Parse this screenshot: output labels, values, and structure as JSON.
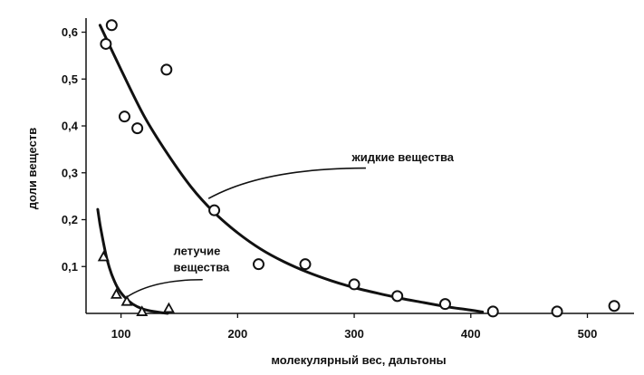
{
  "chart_data": {
    "type": "scatter",
    "xlabel": "молекулярный вес, дальтоны",
    "ylabel": "доли веществ",
    "xlim": [
      70,
      540
    ],
    "ylim": [
      0,
      0.63
    ],
    "x_ticks": [
      100,
      200,
      300,
      400,
      500
    ],
    "x_tick_labels": [
      "100",
      "200",
      "300",
      "400",
      "500"
    ],
    "y_ticks": [
      0.1,
      0.2,
      0.3,
      0.4,
      0.5,
      0.6
    ],
    "y_tick_labels": [
      "0,1",
      "0,2",
      "0,3",
      "0,4",
      "0,5",
      "0,6"
    ],
    "grid": false,
    "colors": {
      "ink": "#111111",
      "background": "#ffffff"
    },
    "series": [
      {
        "name": "жидкие вещества",
        "marker": "circle",
        "points": [
          {
            "x": 87,
            "y": 0.575
          },
          {
            "x": 92,
            "y": 0.615
          },
          {
            "x": 103,
            "y": 0.42
          },
          {
            "x": 114,
            "y": 0.395
          },
          {
            "x": 139,
            "y": 0.52
          },
          {
            "x": 180,
            "y": 0.22
          },
          {
            "x": 218,
            "y": 0.105
          },
          {
            "x": 258,
            "y": 0.105
          },
          {
            "x": 300,
            "y": 0.062
          },
          {
            "x": 337,
            "y": 0.037
          },
          {
            "x": 378,
            "y": 0.02
          },
          {
            "x": 419,
            "y": 0.004
          },
          {
            "x": 474,
            "y": 0.004
          },
          {
            "x": 523,
            "y": 0.016
          }
        ],
        "curve": [
          {
            "x": 82,
            "y": 0.615
          },
          {
            "x": 100,
            "y": 0.52
          },
          {
            "x": 120,
            "y": 0.42
          },
          {
            "x": 140,
            "y": 0.34
          },
          {
            "x": 160,
            "y": 0.27
          },
          {
            "x": 180,
            "y": 0.215
          },
          {
            "x": 200,
            "y": 0.172
          },
          {
            "x": 220,
            "y": 0.137
          },
          {
            "x": 240,
            "y": 0.11
          },
          {
            "x": 260,
            "y": 0.088
          },
          {
            "x": 280,
            "y": 0.07
          },
          {
            "x": 300,
            "y": 0.055
          },
          {
            "x": 320,
            "y": 0.043
          },
          {
            "x": 340,
            "y": 0.032
          },
          {
            "x": 360,
            "y": 0.023
          },
          {
            "x": 380,
            "y": 0.014
          },
          {
            "x": 400,
            "y": 0.007
          },
          {
            "x": 410,
            "y": 0.003
          }
        ],
        "label_anchor": {
          "x": 175,
          "y": 0.245
        }
      },
      {
        "name": "летучие вещества",
        "marker": "triangle",
        "points": [
          {
            "x": 85,
            "y": 0.12
          },
          {
            "x": 96,
            "y": 0.04
          },
          {
            "x": 105,
            "y": 0.025
          },
          {
            "x": 118,
            "y": 0.003
          },
          {
            "x": 141,
            "y": 0.01
          }
        ],
        "curve": [
          {
            "x": 80,
            "y": 0.222
          },
          {
            "x": 82,
            "y": 0.19
          },
          {
            "x": 85,
            "y": 0.15
          },
          {
            "x": 88,
            "y": 0.115
          },
          {
            "x": 92,
            "y": 0.083
          },
          {
            "x": 97,
            "y": 0.055
          },
          {
            "x": 103,
            "y": 0.035
          },
          {
            "x": 110,
            "y": 0.02
          },
          {
            "x": 118,
            "y": 0.01
          },
          {
            "x": 128,
            "y": 0.004
          },
          {
            "x": 140,
            "y": 0.0
          }
        ],
        "label_anchor": {
          "x": 105,
          "y": 0.035
        }
      }
    ],
    "annotations": [
      {
        "series": 0,
        "lines": [
          "жидкие вещества"
        ],
        "text_at": {
          "x": 298,
          "y": 0.325
        },
        "leader_to": {
          "x": 310,
          "y": 0.31
        }
      },
      {
        "series": 1,
        "lines": [
          "летучие",
          "вещества"
        ],
        "text_at": {
          "x": 145,
          "y": 0.125
        },
        "leader_to": {
          "x": 170,
          "y": 0.072
        }
      }
    ]
  }
}
